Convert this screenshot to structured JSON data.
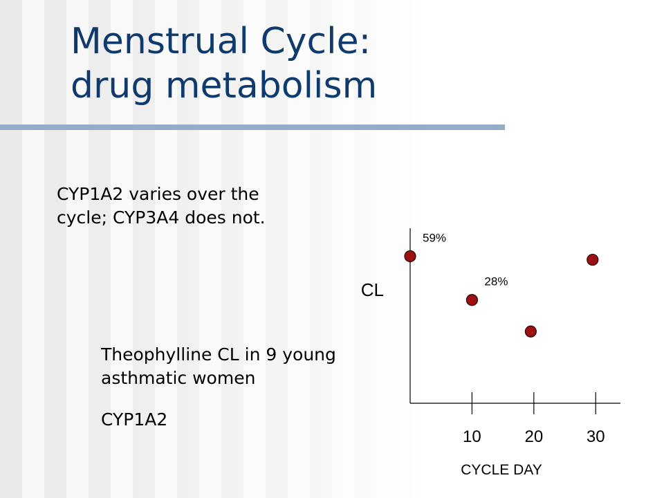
{
  "slide": {
    "title_line1": "Menstrual Cycle:",
    "title_line2": "drug metabolism",
    "bullet": "CYP1A2 varies over the cycle; CYP3A4 does not.",
    "caption": "Theophylline CL in 9 young asthmatic women",
    "caption_sub": "CYP1A2"
  },
  "colors": {
    "title": "#0f3a6e",
    "rule": "#95abc8",
    "point": "#9b1010"
  },
  "chart_data": {
    "type": "scatter",
    "xlabel": "CYCLE DAY",
    "ylabel": "CL",
    "x_ticks": [
      10,
      20,
      30
    ],
    "xlim": [
      0,
      34
    ],
    "ylim": [
      0,
      1
    ],
    "y_ticks_shown": false,
    "grid": false,
    "points": [
      {
        "x": 0,
        "y": 0.84,
        "label": "59%"
      },
      {
        "x": 10,
        "y": 0.59,
        "label": "28%"
      },
      {
        "x": 19.5,
        "y": 0.41,
        "label": ""
      },
      {
        "x": 29.5,
        "y": 0.82,
        "label": ""
      }
    ]
  }
}
